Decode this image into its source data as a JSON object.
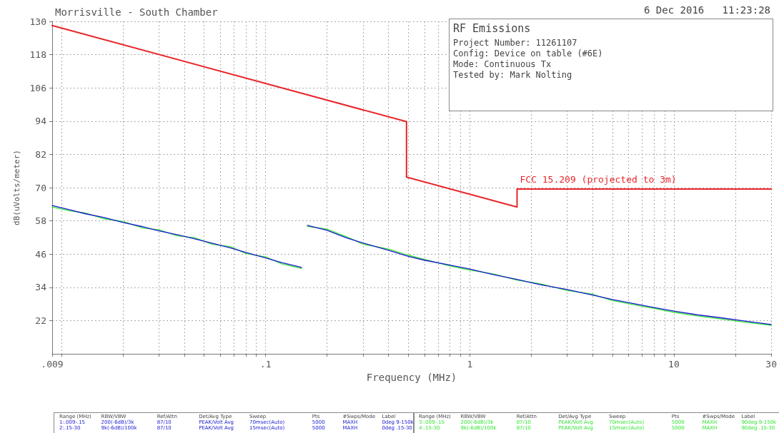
{
  "chart_data": {
    "type": "line",
    "title": "Morrisville - South Chamber",
    "xlabel": "Frequency (MHz)",
    "ylabel": "dB(uVolts/meter)",
    "log": "x",
    "grid": true,
    "legend": false,
    "marker": "none",
    "line_style": "solid",
    "xlim": [
      0.009,
      30
    ],
    "ylim": [
      10,
      130
    ],
    "xticks": [
      {
        "value": 0.009,
        "label": ".009"
      },
      {
        "value": 0.01,
        "label": null
      },
      {
        "value": 0.02,
        "label": null
      },
      {
        "value": 0.03,
        "label": null
      },
      {
        "value": 0.04,
        "label": null
      },
      {
        "value": 0.05,
        "label": null
      },
      {
        "value": 0.06,
        "label": null
      },
      {
        "value": 0.07,
        "label": null
      },
      {
        "value": 0.08,
        "label": null
      },
      {
        "value": 0.09,
        "label": null
      },
      {
        "value": 0.1,
        "label": ".1"
      },
      {
        "value": 0.2,
        "label": null
      },
      {
        "value": 0.3,
        "label": null
      },
      {
        "value": 0.4,
        "label": null
      },
      {
        "value": 0.5,
        "label": null
      },
      {
        "value": 0.6,
        "label": null
      },
      {
        "value": 0.7,
        "label": null
      },
      {
        "value": 0.8,
        "label": null
      },
      {
        "value": 0.9,
        "label": null
      },
      1,
      {
        "value": 2,
        "label": null
      },
      {
        "value": 3,
        "label": null
      },
      {
        "value": 4,
        "label": null
      },
      {
        "value": 5,
        "label": null
      },
      {
        "value": 6,
        "label": null
      },
      {
        "value": 7,
        "label": null
      },
      {
        "value": 8,
        "label": null
      },
      {
        "value": 9,
        "label": null
      },
      10,
      {
        "value": 20,
        "label": null
      },
      30
    ],
    "yticks": [
      22,
      34,
      46,
      58,
      70,
      82,
      94,
      106,
      118,
      130
    ],
    "series": [
      {
        "name": "FCC 15.209 (projected to 3m)",
        "color": "#e8262a",
        "x": [
          0.009,
          0.49,
          0.49,
          1.705,
          1.705,
          30
        ],
        "values": [
          128.5,
          93.8,
          73.8,
          63.0,
          69.5,
          69.5
        ]
      },
      {
        "color": "#1a1ad0",
        "x": [
          0.009,
          0.011,
          0.013,
          0.016,
          0.02,
          0.025,
          0.03,
          0.037,
          0.045,
          0.055,
          0.067,
          0.08,
          0.1,
          0.12,
          0.15,
          0.151,
          0.16,
          0.2,
          0.25,
          0.3,
          0.4,
          0.5,
          0.6,
          0.8,
          1,
          1.3,
          1.7,
          2.2,
          3,
          4,
          5,
          6.5,
          8,
          10,
          13,
          17,
          22,
          30
        ],
        "values": [
          63.5,
          62.0,
          60.6,
          59.3,
          57.4,
          55.9,
          54.4,
          53.0,
          51.5,
          49.9,
          48.3,
          46.6,
          44.6,
          42.9,
          41.2,
          null,
          56.4,
          54.6,
          51.8,
          50.0,
          47.4,
          45.2,
          43.8,
          42.0,
          40.6,
          38.6,
          36.9,
          35.0,
          33.2,
          31.2,
          29.6,
          28.0,
          26.7,
          25.4,
          24.1,
          23.0,
          21.9,
          20.6
        ]
      },
      {
        "color": "#33e633",
        "x": [
          0.009,
          0.011,
          0.013,
          0.016,
          0.02,
          0.025,
          0.03,
          0.037,
          0.045,
          0.055,
          0.067,
          0.08,
          0.1,
          0.12,
          0.15,
          0.151,
          0.16,
          0.2,
          0.25,
          0.3,
          0.4,
          0.5,
          0.6,
          0.8,
          1,
          1.3,
          1.7,
          2.2,
          3,
          4,
          5,
          6.5,
          8,
          10,
          13,
          17,
          22,
          30
        ],
        "values": [
          63.0,
          61.6,
          60.9,
          58.8,
          57.8,
          55.4,
          54.8,
          52.6,
          51.9,
          49.5,
          48.7,
          46.2,
          45.0,
          42.5,
          40.8,
          null,
          56.0,
          55.0,
          52.2,
          49.6,
          47.8,
          45.6,
          44.1,
          41.7,
          40.2,
          38.9,
          36.6,
          35.3,
          32.9,
          31.5,
          29.2,
          27.6,
          26.4,
          25.0,
          23.7,
          22.6,
          21.5,
          20.3
        ]
      }
    ],
    "annotations": [
      "6 Dec 2016   11:23:28",
      "RF Emissions",
      "Project Number: 11261107",
      "Config: Device on table (#6E)",
      "Mode: Continuous Tx",
      "Tested by: Mark Nolting",
      "Range (MHz)",
      "RBW/VBW",
      "Ref/Attn",
      "Det/Avg Type",
      "Sweep",
      "Pts",
      "#Swps/Mode",
      "Label",
      "1:.009-.15",
      "200(-6dB)/3k",
      "87/10",
      "PEAK/Volt Avg",
      "70msec(Auto)",
      "5000",
      "MAXH",
      "0deg 9-150k",
      "2:.15-30",
      "9k(-6dB)/100k",
      "87/10",
      "PEAK/Volt Avg",
      "15msec(Auto)",
      "5000",
      "MAXH",
      "0deg .15-30",
      "Range (MHz)",
      "RBW/VBW",
      "Ref/Attn",
      "Det/Avg Type",
      "Sweep",
      "Pts",
      "#Swps/Mode",
      "Label",
      "3:.009-.15",
      "200(-6dB)/3k",
      "87/10",
      "PEAK/Volt Avg",
      "70msec(Auto)",
      "5000",
      "MAXH",
      "90deg 9-150k",
      "4:.15-30",
      "9k(-6dB)/100k",
      "87/10",
      "PEAK/Volt Avg",
      "15msec(Auto)",
      "5000",
      "MAXH",
      "90deg .15-30"
    ]
  }
}
